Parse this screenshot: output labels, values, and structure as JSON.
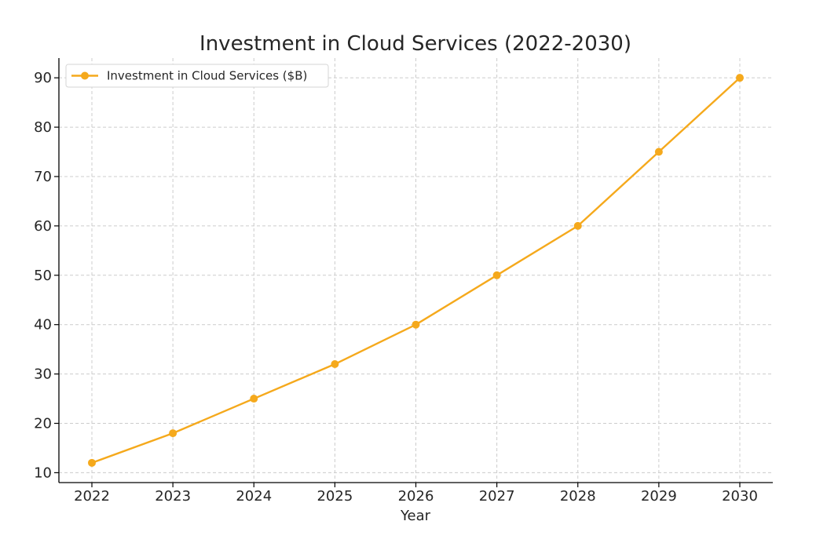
{
  "chart_data": {
    "type": "line",
    "title": "Investment in Cloud Services (2022-2030)",
    "xlabel": "Year",
    "ylabel": "",
    "x": [
      "2022",
      "2023",
      "2024",
      "2025",
      "2026",
      "2027",
      "2028",
      "2029",
      "2030"
    ],
    "series": [
      {
        "name": "Investment in Cloud Services ($B)",
        "color": "#f5a91c",
        "marker": "circle",
        "values": [
          12,
          18,
          25,
          32,
          40,
          50,
          60,
          75,
          90
        ]
      }
    ],
    "ylim": [
      8,
      94
    ],
    "yticks": [
      10,
      20,
      30,
      40,
      50,
      60,
      70,
      80,
      90
    ],
    "grid": true,
    "legend": "upper-left"
  }
}
